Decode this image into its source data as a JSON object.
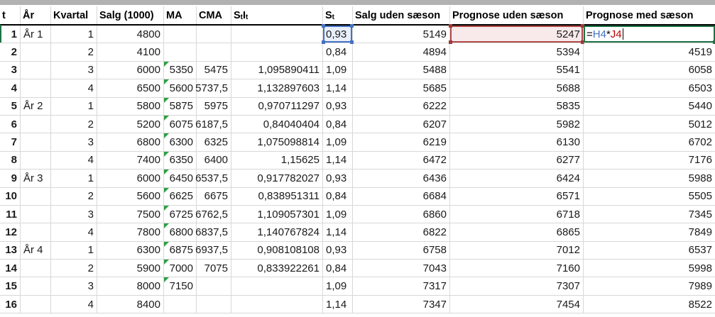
{
  "table": {
    "headers": [
      {
        "text": "t"
      },
      {
        "text": "År"
      },
      {
        "text": "Kvartal"
      },
      {
        "text": "Salg (1000)"
      },
      {
        "text": "MA"
      },
      {
        "text": "CMA"
      },
      {
        "sub_pairs": [
          {
            "base": "S",
            "sub": "t"
          },
          {
            "base": "I",
            "sub": "t"
          }
        ]
      },
      {
        "sub_pairs": [
          {
            "base": "S",
            "sub": "t"
          }
        ]
      },
      {
        "text": "Salg uden sæson"
      },
      {
        "text": "Prognose uden sæson"
      },
      {
        "text": "Prognose med sæson"
      }
    ],
    "columns": [
      {
        "key": "t",
        "align": "right",
        "bold": true
      },
      {
        "key": "ar",
        "align": "left"
      },
      {
        "key": "kvartal",
        "align": "right"
      },
      {
        "key": "salg",
        "align": "right"
      },
      {
        "key": "ma",
        "align": "right"
      },
      {
        "key": "cma",
        "align": "right"
      },
      {
        "key": "stit",
        "align": "right"
      },
      {
        "key": "st",
        "align": "left"
      },
      {
        "key": "salg_uden",
        "align": "right"
      },
      {
        "key": "prog_uden",
        "align": "right"
      },
      {
        "key": "prog_med",
        "align": "right"
      }
    ],
    "rows": [
      {
        "t": "1",
        "ar": "År 1",
        "kvartal": "1",
        "salg": "4800",
        "ma": "",
        "ma_flag": false,
        "cma": "",
        "stit": "",
        "st": "0,93",
        "salg_uden": "5149",
        "prog_uden": "5247",
        "prog_med": ""
      },
      {
        "t": "2",
        "ar": "",
        "kvartal": "2",
        "salg": "4100",
        "ma": "",
        "ma_flag": false,
        "cma": "",
        "stit": "",
        "st": "0,84",
        "salg_uden": "4894",
        "prog_uden": "5394",
        "prog_med": "4519"
      },
      {
        "t": "3",
        "ar": "",
        "kvartal": "3",
        "salg": "6000",
        "ma": "5350",
        "ma_flag": true,
        "cma": "5475",
        "stit": "1,095890411",
        "st": "1,09",
        "salg_uden": "5488",
        "prog_uden": "5541",
        "prog_med": "6058"
      },
      {
        "t": "4",
        "ar": "",
        "kvartal": "4",
        "salg": "6500",
        "ma": "5600",
        "ma_flag": true,
        "cma": "5737,5",
        "stit": "1,132897603",
        "st": "1,14",
        "salg_uden": "5685",
        "prog_uden": "5688",
        "prog_med": "6503"
      },
      {
        "t": "5",
        "ar": "År 2",
        "kvartal": "1",
        "salg": "5800",
        "ma": "5875",
        "ma_flag": true,
        "cma": "5975",
        "stit": "0,970711297",
        "st": "0,93",
        "salg_uden": "6222",
        "prog_uden": "5835",
        "prog_med": "5440"
      },
      {
        "t": "6",
        "ar": "",
        "kvartal": "2",
        "salg": "5200",
        "ma": "6075",
        "ma_flag": true,
        "cma": "6187,5",
        "stit": "0,84040404",
        "st": "0,84",
        "salg_uden": "6207",
        "prog_uden": "5982",
        "prog_med": "5012"
      },
      {
        "t": "7",
        "ar": "",
        "kvartal": "3",
        "salg": "6800",
        "ma": "6300",
        "ma_flag": true,
        "cma": "6325",
        "stit": "1,075098814",
        "st": "1,09",
        "salg_uden": "6219",
        "prog_uden": "6130",
        "prog_med": "6702"
      },
      {
        "t": "8",
        "ar": "",
        "kvartal": "4",
        "salg": "7400",
        "ma": "6350",
        "ma_flag": true,
        "cma": "6400",
        "stit": "1,15625",
        "st": "1,14",
        "salg_uden": "6472",
        "prog_uden": "6277",
        "prog_med": "7176"
      },
      {
        "t": "9",
        "ar": "År 3",
        "kvartal": "1",
        "salg": "6000",
        "ma": "6450",
        "ma_flag": true,
        "cma": "6537,5",
        "stit": "0,917782027",
        "st": "0,93",
        "salg_uden": "6436",
        "prog_uden": "6424",
        "prog_med": "5988"
      },
      {
        "t": "10",
        "ar": "",
        "kvartal": "2",
        "salg": "5600",
        "ma": "6625",
        "ma_flag": true,
        "cma": "6675",
        "stit": "0,838951311",
        "st": "0,84",
        "salg_uden": "6684",
        "prog_uden": "6571",
        "prog_med": "5505"
      },
      {
        "t": "11",
        "ar": "",
        "kvartal": "3",
        "salg": "7500",
        "ma": "6725",
        "ma_flag": true,
        "cma": "6762,5",
        "stit": "1,109057301",
        "st": "1,09",
        "salg_uden": "6860",
        "prog_uden": "6718",
        "prog_med": "7345"
      },
      {
        "t": "12",
        "ar": "",
        "kvartal": "4",
        "salg": "7800",
        "ma": "6800",
        "ma_flag": true,
        "cma": "6837,5",
        "stit": "1,140767824",
        "st": "1,14",
        "salg_uden": "6822",
        "prog_uden": "6865",
        "prog_med": "7849"
      },
      {
        "t": "13",
        "ar": "År 4",
        "kvartal": "1",
        "salg": "6300",
        "ma": "6875",
        "ma_flag": true,
        "cma": "6937,5",
        "stit": "0,908108108",
        "st": "0,93",
        "salg_uden": "6758",
        "prog_uden": "7012",
        "prog_med": "6537"
      },
      {
        "t": "14",
        "ar": "",
        "kvartal": "2",
        "salg": "5900",
        "ma": "7000",
        "ma_flag": true,
        "cma": "7075",
        "stit": "0,833922261",
        "st": "0,84",
        "salg_uden": "7043",
        "prog_uden": "7160",
        "prog_med": "5998"
      },
      {
        "t": "15",
        "ar": "",
        "kvartal": "3",
        "salg": "8000",
        "ma": "7150",
        "ma_flag": true,
        "cma": "",
        "stit": "",
        "st": "1,09",
        "salg_uden": "7317",
        "prog_uden": "7307",
        "prog_med": "7989"
      },
      {
        "t": "16",
        "ar": "",
        "kvartal": "4",
        "salg": "8400",
        "ma": "",
        "ma_flag": false,
        "cma": "",
        "stit": "",
        "st": "1,14",
        "salg_uden": "7347",
        "prog_uden": "7454",
        "prog_med": "8522"
      }
    ]
  },
  "selection": {
    "edit_row_index": 0,
    "blue_ref_column": "st",
    "blue_ref_value": "0,93",
    "red_ref_column": "prog_uden",
    "red_ref_value": "5247",
    "edit_column": "prog_med",
    "formula_parts": [
      {
        "text": "=",
        "color": "#000000"
      },
      {
        "text": "H4",
        "color": "#4472c4"
      },
      {
        "text": "*",
        "color": "#000000"
      },
      {
        "text": "J4",
        "color": "#c00000"
      }
    ]
  },
  "colors": {
    "gridline": "#d8d8d8",
    "header_underline": "#000000",
    "top_bar": "#b2b2b2",
    "blue_ref_border": "#4472c4",
    "blue_ref_fill": "#e9effa",
    "red_ref_border": "#b04a4a",
    "red_ref_fill": "#f8eaea",
    "edit_cell_border": "#1f7244",
    "error_triangle": "#2f9e44"
  }
}
